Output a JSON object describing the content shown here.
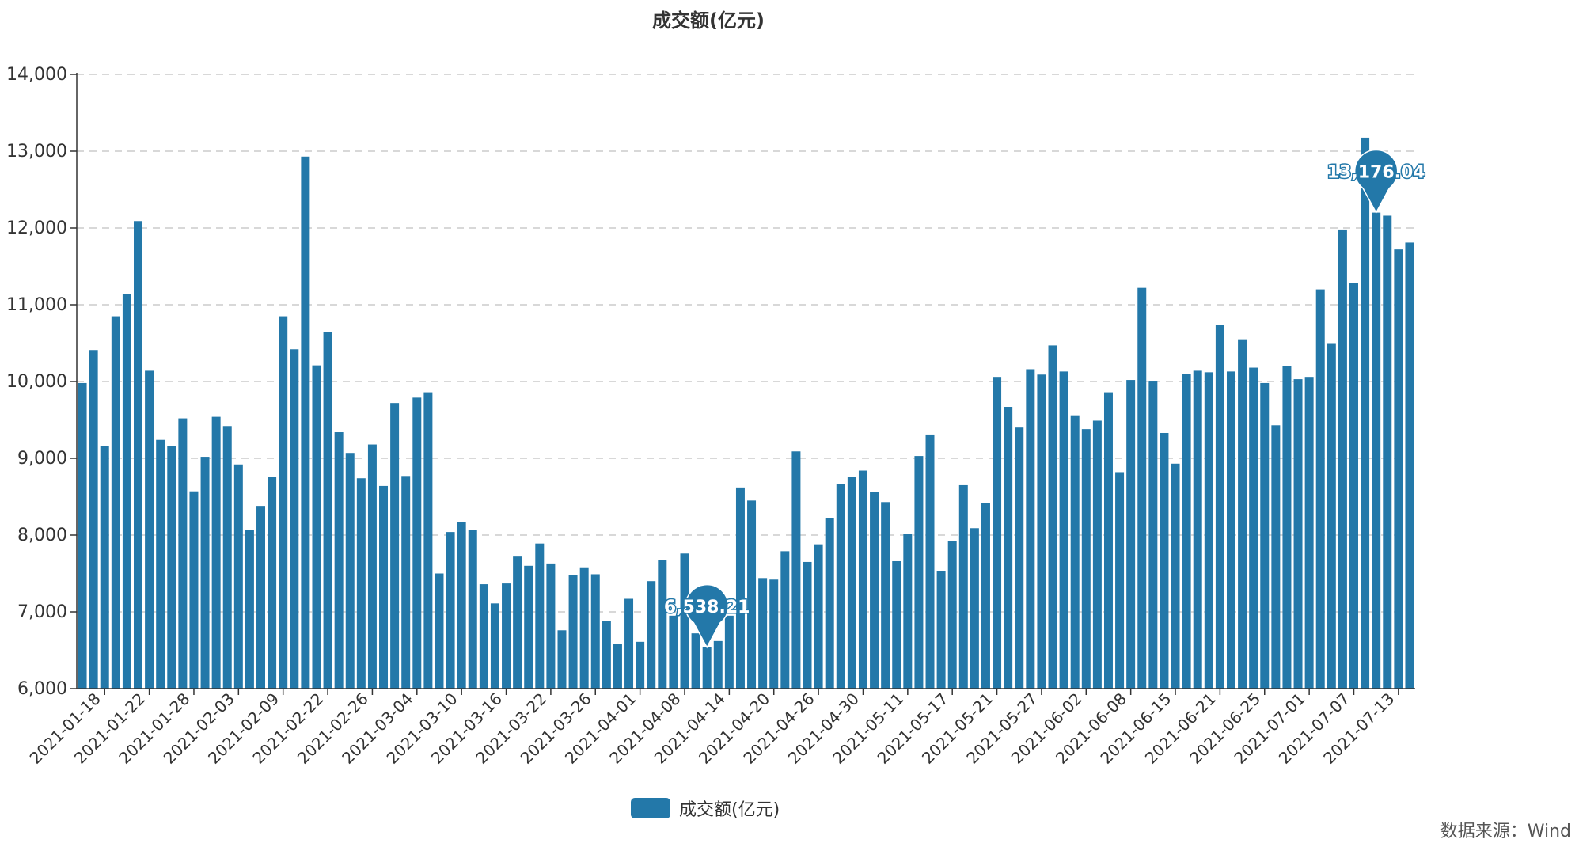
{
  "chart_data": {
    "type": "bar",
    "title": "成交额(亿元)",
    "xlabel": "",
    "ylabel": "",
    "ylim": [
      6000,
      14000
    ],
    "yticks": [
      6000,
      7000,
      8000,
      9000,
      10000,
      11000,
      12000,
      13000,
      14000
    ],
    "ytick_labels": [
      "6,000",
      "7,000",
      "8,000",
      "9,000",
      "10,000",
      "11,000",
      "12,000",
      "13,000",
      "14,000"
    ],
    "grid": true,
    "legend_position": "bottom-center",
    "bar_color": "#2378a9",
    "series": [
      {
        "name": "成交额(亿元)",
        "values": [
          9980,
          10410,
          9160,
          10850,
          11140,
          12090,
          10140,
          9240,
          9160,
          9520,
          8570,
          9020,
          9540,
          9420,
          8920,
          8070,
          8380,
          8760,
          10850,
          10420,
          12930,
          10210,
          10640,
          9340,
          9070,
          8740,
          9180,
          8640,
          9720,
          8770,
          9790,
          9860,
          7500,
          8040,
          8170,
          8070,
          7360,
          7110,
          7370,
          7720,
          7600,
          7890,
          7630,
          6760,
          7480,
          7580,
          7490,
          6880,
          6580,
          7170,
          6610,
          7400,
          7670,
          6950,
          7760,
          6720,
          6538.21,
          6620,
          6950,
          8620,
          8450,
          7440,
          7420,
          7790,
          9090,
          7650,
          7880,
          8220,
          8670,
          8760,
          8840,
          8560,
          8430,
          7660,
          8020,
          9030,
          9310,
          7530,
          7920,
          8650,
          8090,
          8420,
          10060,
          9670,
          9400,
          10160,
          10090,
          10470,
          10130,
          9560,
          9380,
          9490,
          9860,
          8820,
          10020,
          11220,
          10010,
          9330,
          8930,
          10100,
          10140,
          10120,
          10740,
          10130,
          10550,
          10180,
          9980,
          9430,
          10200,
          10030,
          10060,
          11200,
          10500,
          11980,
          11280,
          13176.04,
          12200,
          12160,
          11720,
          11810
        ]
      }
    ],
    "tick_labels": [
      "2021-01-18",
      "2021-01-22",
      "2021-01-28",
      "2021-02-03",
      "2021-02-09",
      "2021-02-22",
      "2021-02-26",
      "2021-03-04",
      "2021-03-10",
      "2021-03-16",
      "2021-03-22",
      "2021-03-26",
      "2021-04-01",
      "2021-04-08",
      "2021-04-14",
      "2021-04-20",
      "2021-04-26",
      "2021-04-30",
      "2021-05-11",
      "2021-05-17",
      "2021-05-21",
      "2021-05-27",
      "2021-06-02",
      "2021-06-08",
      "2021-06-15",
      "2021-06-21",
      "2021-06-25",
      "2021-07-01",
      "2021-07-07",
      "2021-07-13"
    ],
    "annotations": [
      {
        "type": "max",
        "index": 116,
        "label": "13,176.04"
      },
      {
        "type": "min",
        "index": 56,
        "label": "6,538.21"
      }
    ],
    "legend": [
      "成交额(亿元)"
    ]
  },
  "source_note": "数据来源：Wind"
}
